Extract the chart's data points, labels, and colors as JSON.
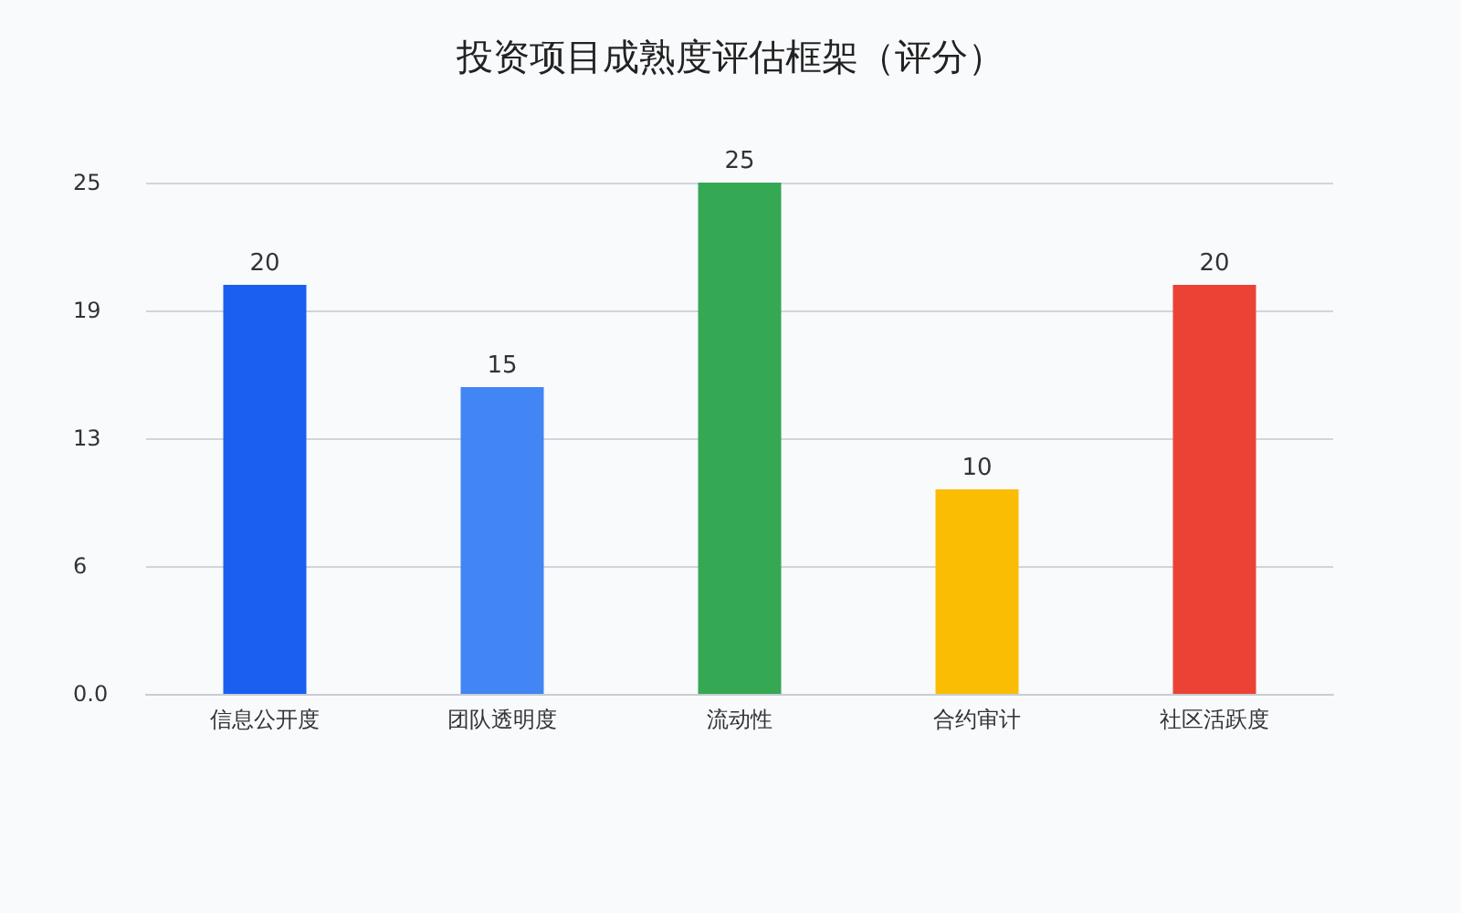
{
  "chart_data": {
    "type": "bar",
    "title": "投资项目成熟度评估框架（评分）",
    "categories": [
      "信息公开度",
      "团队透明度",
      "流动性",
      "合约审计",
      "社区活跃度"
    ],
    "values": [
      20,
      15,
      25,
      10,
      20
    ],
    "colors": [
      "#1a5ff0",
      "#4285f4",
      "#34a853",
      "#fbbc04",
      "#ea4335"
    ],
    "ylim": [
      0,
      25
    ],
    "yticks": [
      {
        "value": 0,
        "label": "0.0"
      },
      {
        "value": 6.25,
        "label": "6"
      },
      {
        "value": 12.5,
        "label": "13"
      },
      {
        "value": 18.75,
        "label": "19"
      },
      {
        "value": 25,
        "label": "25"
      }
    ],
    "grid": "y",
    "data_labels": true
  }
}
